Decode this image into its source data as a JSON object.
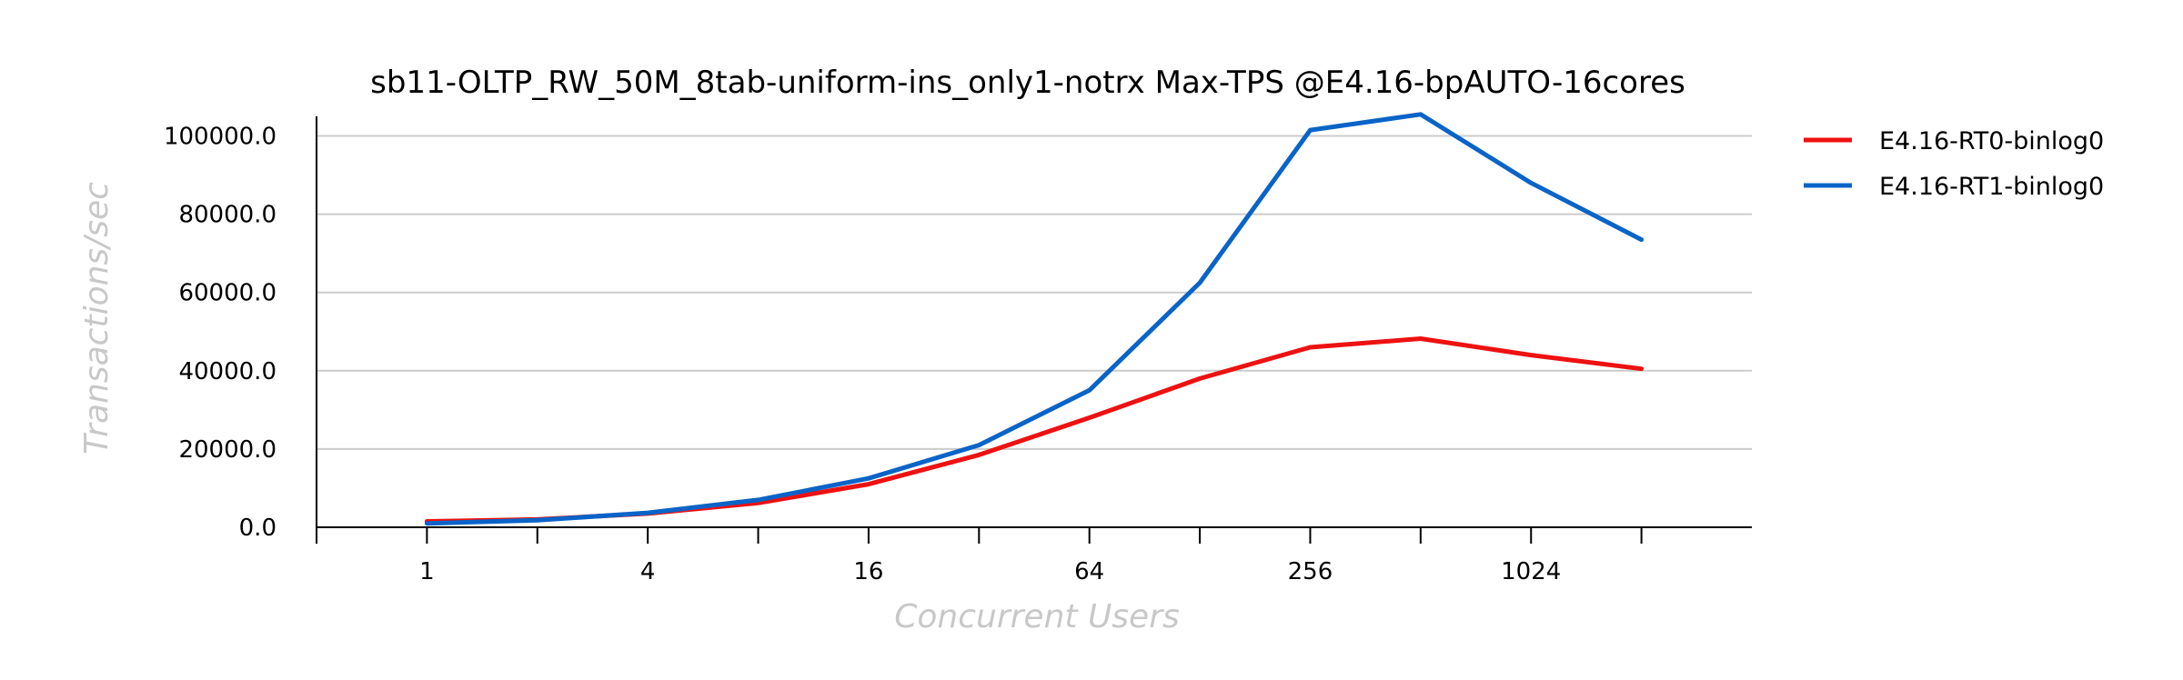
{
  "chart_data": {
    "type": "line",
    "title": "sb11-OLTP_RW_50M_8tab-uniform-ins_only1-notrx Max-TPS @E4.16-bpAUTO-16cores",
    "xlabel": "Concurrent Users",
    "ylabel": "Transactions/sec",
    "x_scale": "log2",
    "x": [
      1,
      2,
      4,
      8,
      16,
      32,
      64,
      128,
      256,
      512,
      1024,
      2048
    ],
    "x_tick_labels": [
      "1",
      "4",
      "16",
      "64",
      "256",
      "1024"
    ],
    "x_tick_values": [
      1,
      4,
      16,
      64,
      256,
      1024
    ],
    "xlim": [
      0.5,
      4096
    ],
    "ylim": [
      0,
      105000
    ],
    "y_ticks": [
      0,
      20000,
      40000,
      60000,
      80000,
      100000
    ],
    "y_tick_labels": [
      "0.0",
      "20000.0",
      "40000.0",
      "60000.0",
      "80000.0",
      "100000.0"
    ],
    "grid": "horizontal",
    "legend_position": "outside-right-top",
    "series": [
      {
        "name": "E4.16-RT0-binlog0",
        "color": "#ee1111",
        "values": [
          1500,
          2000,
          3500,
          6200,
          11000,
          18500,
          28000,
          38000,
          46000,
          48200,
          44000,
          40500
        ]
      },
      {
        "name": "E4.16-RT1-binlog0",
        "color": "#0a64c8",
        "values": [
          1000,
          1800,
          3700,
          7000,
          12500,
          21000,
          35000,
          62500,
          101500,
          105500,
          88000,
          73500
        ]
      }
    ]
  }
}
